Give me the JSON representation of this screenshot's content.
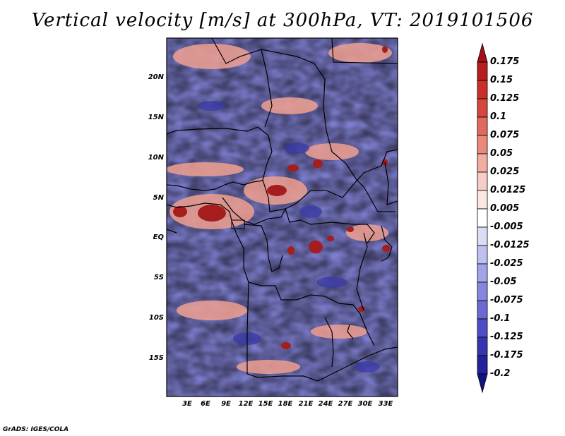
{
  "title": "Vertical velocity [m/s] at 300hPa, VT: 2019101506",
  "footer": "GrADS: IGES/COLA",
  "map": {
    "lat_labels": [
      "20N",
      "15N",
      "10N",
      "5N",
      "EQ",
      "5S",
      "10S",
      "15S"
    ],
    "lon_labels": [
      "3E",
      "6E",
      "9E",
      "12E",
      "15E",
      "18E",
      "21E",
      "24E",
      "27E",
      "30E",
      "33E"
    ]
  },
  "colorbar": {
    "levels": [
      "0.175",
      "0.15",
      "0.125",
      "0.1",
      "0.075",
      "0.05",
      "0.025",
      "0.0125",
      "0.005",
      "-0.005",
      "-0.0125",
      "-0.025",
      "-0.05",
      "-0.075",
      "-0.1",
      "-0.125",
      "-0.175",
      "-0.2"
    ],
    "colors": [
      "#a50f15",
      "#b71c20",
      "#c9302c",
      "#d6463f",
      "#e06a5c",
      "#e9897c",
      "#f2aca2",
      "#f8ccc6",
      "#fbe6e3",
      "#ffffff",
      "#dcdcf7",
      "#c0c0f0",
      "#a3a3e8",
      "#8686de",
      "#6a6ad2",
      "#4d4dc4",
      "#3535b0",
      "#22229a",
      "#14147e"
    ]
  }
}
